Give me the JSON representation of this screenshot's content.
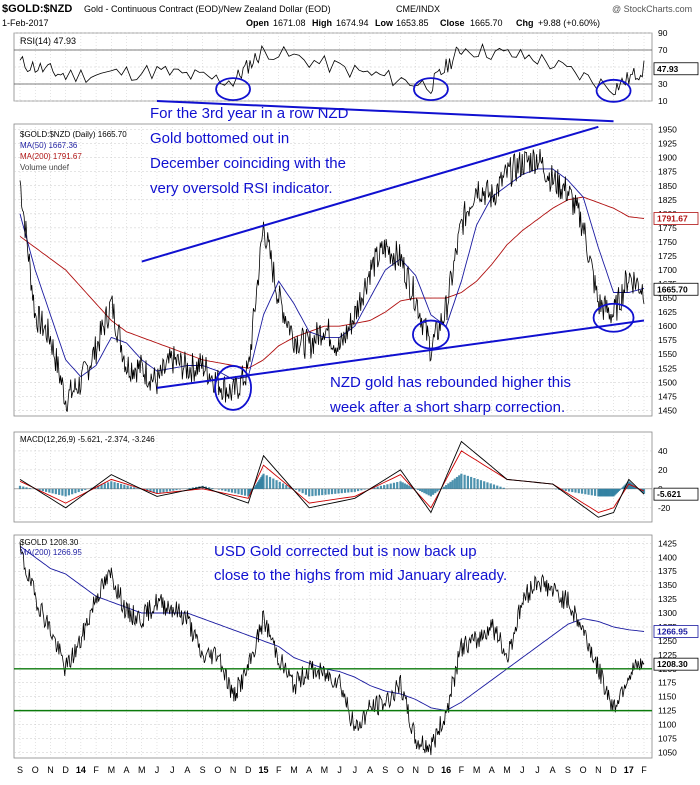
{
  "header": {
    "symbol": "$GOLD:$NZD",
    "name": "Gold - Continuous Contract (EOD)/New Zealand Dollar (EOD)",
    "exchange": "CME/INDX",
    "watermark": "@ StockCharts.com",
    "date": "1-Feb-2017",
    "open_label": "Open",
    "open": "1671.08",
    "high_label": "High",
    "high": "1674.94",
    "low_label": "Low",
    "low": "1653.85",
    "close_label": "Close",
    "close": "1665.70",
    "chg_label": "Chg",
    "chg": "+9.88 (+0.60%)"
  },
  "colors": {
    "price": "#000000",
    "ma50": "#1a1aa0",
    "ma200": "#b01010",
    "annotation": "#1010d0",
    "green_line": "#0b7a0b",
    "macd_hist": "#2f7fa0",
    "grid": "#c8c8c8"
  },
  "months_axis": [
    "S",
    "O",
    "N",
    "D",
    "14",
    "F",
    "M",
    "A",
    "M",
    "J",
    "J",
    "A",
    "S",
    "O",
    "N",
    "D",
    "15",
    "F",
    "M",
    "A",
    "M",
    "J",
    "J",
    "A",
    "S",
    "O",
    "N",
    "D",
    "16",
    "F",
    "M",
    "A",
    "M",
    "J",
    "J",
    "A",
    "S",
    "O",
    "N",
    "D",
    "17",
    "F"
  ],
  "rsi_panel": {
    "legend": "RSI(14) 47.93",
    "last_value": "47.93",
    "ticks": [
      "90",
      "70",
      "50",
      "30",
      "10"
    ]
  },
  "price_panel": {
    "legend_title": "$GOLD:$NZD (Daily) 1665.70",
    "legend_ma50": "MA(50) 1667.36",
    "legend_ma200": "MA(200) 1791.67",
    "legend_volume": "Volume undef",
    "last_price": "1665.70",
    "last_ma200": "1791.67",
    "ticks": [
      "1950",
      "1925",
      "1900",
      "1875",
      "1850",
      "1825",
      "1800",
      "1775",
      "1750",
      "1725",
      "1700",
      "1675",
      "1650",
      "1625",
      "1600",
      "1575",
      "1550",
      "1525",
      "1500",
      "1475",
      "1450"
    ]
  },
  "macd_panel": {
    "legend": "MACD(12,26,9) -5.621, -2.374, -3.246",
    "last_value": "-5.621",
    "ticks": [
      "40",
      "20",
      "0",
      "-20"
    ]
  },
  "usd_panel": {
    "legend_title": "$GOLD 1208.30",
    "legend_ma200": "MA(200) 1266.95",
    "last_price": "1208.30",
    "last_ma200": "1266.95",
    "ticks": [
      "1425",
      "1400",
      "1375",
      "1350",
      "1325",
      "1300",
      "1275",
      "1250",
      "1225",
      "1200",
      "1175",
      "1150",
      "1125",
      "1100",
      "1075",
      "1050"
    ]
  },
  "annotations": {
    "rsi_note": [
      "For the 3rd year in a row NZD",
      "Gold bottomed out in",
      "December coinciding with the",
      "very oversold RSI indicator."
    ],
    "rebound_note": [
      "NZD gold has rebounded higher this",
      "week after a short sharp correction."
    ],
    "usd_note": [
      "USD Gold corrected but is now back up",
      "close to the highs from mid January already."
    ]
  },
  "chart_data": [
    {
      "type": "line",
      "panel": "RSI(14)",
      "x": [
        "2013-09",
        "2013-12",
        "2014-06",
        "2014-11",
        "2015-01",
        "2015-07",
        "2015-12",
        "2016-02",
        "2016-07",
        "2016-12",
        "2017-02"
      ],
      "series": [
        {
          "name": "RSI(14)",
          "values": [
            55,
            40,
            45,
            33,
            70,
            45,
            28,
            72,
            60,
            25,
            48
          ]
        }
      ],
      "ylim": [
        10,
        90
      ]
    },
    {
      "type": "line",
      "panel": "$GOLD:$NZD (Daily)",
      "x": [
        "2013-09",
        "2013-10",
        "2013-11",
        "2013-12",
        "2014-01",
        "2014-02",
        "2014-03",
        "2014-04",
        "2014-05",
        "2014-06",
        "2014-07",
        "2014-08",
        "2014-09",
        "2014-10",
        "2014-11",
        "2014-12",
        "2015-01",
        "2015-02",
        "2015-03",
        "2015-04",
        "2015-05",
        "2015-06",
        "2015-07",
        "2015-08",
        "2015-09",
        "2015-10",
        "2015-11",
        "2015-12",
        "2016-01",
        "2016-02",
        "2016-03",
        "2016-04",
        "2016-05",
        "2016-06",
        "2016-07",
        "2016-08",
        "2016-09",
        "2016-10",
        "2016-11",
        "2016-12",
        "2017-01",
        "2017-02"
      ],
      "series": [
        {
          "name": "$GOLD:$NZD",
          "values": [
            1860,
            1620,
            1580,
            1470,
            1500,
            1560,
            1640,
            1530,
            1525,
            1500,
            1540,
            1525,
            1530,
            1500,
            1480,
            1520,
            1780,
            1650,
            1580,
            1565,
            1600,
            1560,
            1620,
            1700,
            1740,
            1720,
            1650,
            1560,
            1630,
            1780,
            1850,
            1830,
            1870,
            1890,
            1900,
            1860,
            1840,
            1780,
            1640,
            1620,
            1690,
            1665.7
          ]
        },
        {
          "name": "MA(50)",
          "values": [
            1800,
            1700,
            1620,
            1540,
            1510,
            1530,
            1580,
            1570,
            1540,
            1520,
            1525,
            1530,
            1530,
            1520,
            1505,
            1510,
            1620,
            1680,
            1640,
            1590,
            1580,
            1580,
            1600,
            1650,
            1700,
            1720,
            1690,
            1620,
            1600,
            1680,
            1780,
            1830,
            1850,
            1870,
            1880,
            1880,
            1860,
            1830,
            1740,
            1660,
            1660,
            1667.36
          ]
        },
        {
          "name": "MA(200)",
          "values": [
            1760,
            1740,
            1720,
            1700,
            1670,
            1640,
            1610,
            1590,
            1580,
            1570,
            1560,
            1550,
            1540,
            1535,
            1530,
            1525,
            1540,
            1565,
            1580,
            1590,
            1600,
            1600,
            1605,
            1610,
            1625,
            1645,
            1650,
            1650,
            1650,
            1660,
            1680,
            1710,
            1745,
            1770,
            1790,
            1810,
            1825,
            1830,
            1820,
            1810,
            1795,
            1791.67
          ]
        }
      ],
      "ylim": [
        1440,
        1960
      ]
    },
    {
      "type": "line",
      "panel": "MACD(12,26,9)",
      "x": [
        "2013-09",
        "2013-12",
        "2014-03",
        "2014-06",
        "2014-09",
        "2014-12",
        "2015-01",
        "2015-04",
        "2015-07",
        "2015-10",
        "2015-12",
        "2016-02",
        "2016-05",
        "2016-08",
        "2016-11",
        "2016-12",
        "2017-01",
        "2017-02"
      ],
      "series": [
        {
          "name": "MACD",
          "values": [
            10,
            -20,
            15,
            -8,
            2,
            -15,
            35,
            -20,
            -10,
            20,
            -25,
            50,
            10,
            5,
            -30,
            -25,
            10,
            -5.621
          ]
        },
        {
          "name": "Signal",
          "values": [
            8,
            -15,
            10,
            -5,
            0,
            -10,
            25,
            -15,
            -8,
            15,
            -20,
            40,
            10,
            5,
            -25,
            -20,
            5,
            -2.374
          ]
        }
      ],
      "ylim": [
        -35,
        60
      ]
    },
    {
      "type": "line",
      "panel": "$GOLD",
      "x": [
        "2013-09",
        "2013-10",
        "2013-11",
        "2013-12",
        "2014-01",
        "2014-02",
        "2014-03",
        "2014-04",
        "2014-05",
        "2014-06",
        "2014-07",
        "2014-08",
        "2014-09",
        "2014-10",
        "2014-11",
        "2014-12",
        "2015-01",
        "2015-02",
        "2015-03",
        "2015-04",
        "2015-05",
        "2015-06",
        "2015-07",
        "2015-08",
        "2015-09",
        "2015-10",
        "2015-11",
        "2015-12",
        "2016-01",
        "2016-02",
        "2016-03",
        "2016-04",
        "2016-05",
        "2016-06",
        "2016-07",
        "2016-08",
        "2016-09",
        "2016-10",
        "2016-11",
        "2016-12",
        "2017-01",
        "2017-02"
      ],
      "series": [
        {
          "name": "$GOLD",
          "values": [
            1410,
            1330,
            1270,
            1200,
            1250,
            1330,
            1370,
            1300,
            1290,
            1320,
            1310,
            1290,
            1220,
            1230,
            1150,
            1200,
            1290,
            1220,
            1170,
            1200,
            1190,
            1180,
            1090,
            1130,
            1140,
            1170,
            1070,
            1060,
            1120,
            1240,
            1250,
            1280,
            1220,
            1320,
            1360,
            1340,
            1320,
            1270,
            1200,
            1130,
            1190,
            1208.3
          ]
        },
        {
          "name": "MA(200)",
          "values": [
            1420,
            1400,
            1380,
            1370,
            1350,
            1330,
            1320,
            1310,
            1300,
            1300,
            1300,
            1300,
            1290,
            1280,
            1270,
            1260,
            1250,
            1240,
            1220,
            1210,
            1200,
            1195,
            1185,
            1170,
            1160,
            1155,
            1145,
            1130,
            1125,
            1140,
            1160,
            1180,
            1200,
            1220,
            1240,
            1260,
            1280,
            1290,
            1285,
            1275,
            1270,
            1266.95
          ]
        }
      ],
      "ylim": [
        1040,
        1440
      ]
    }
  ]
}
